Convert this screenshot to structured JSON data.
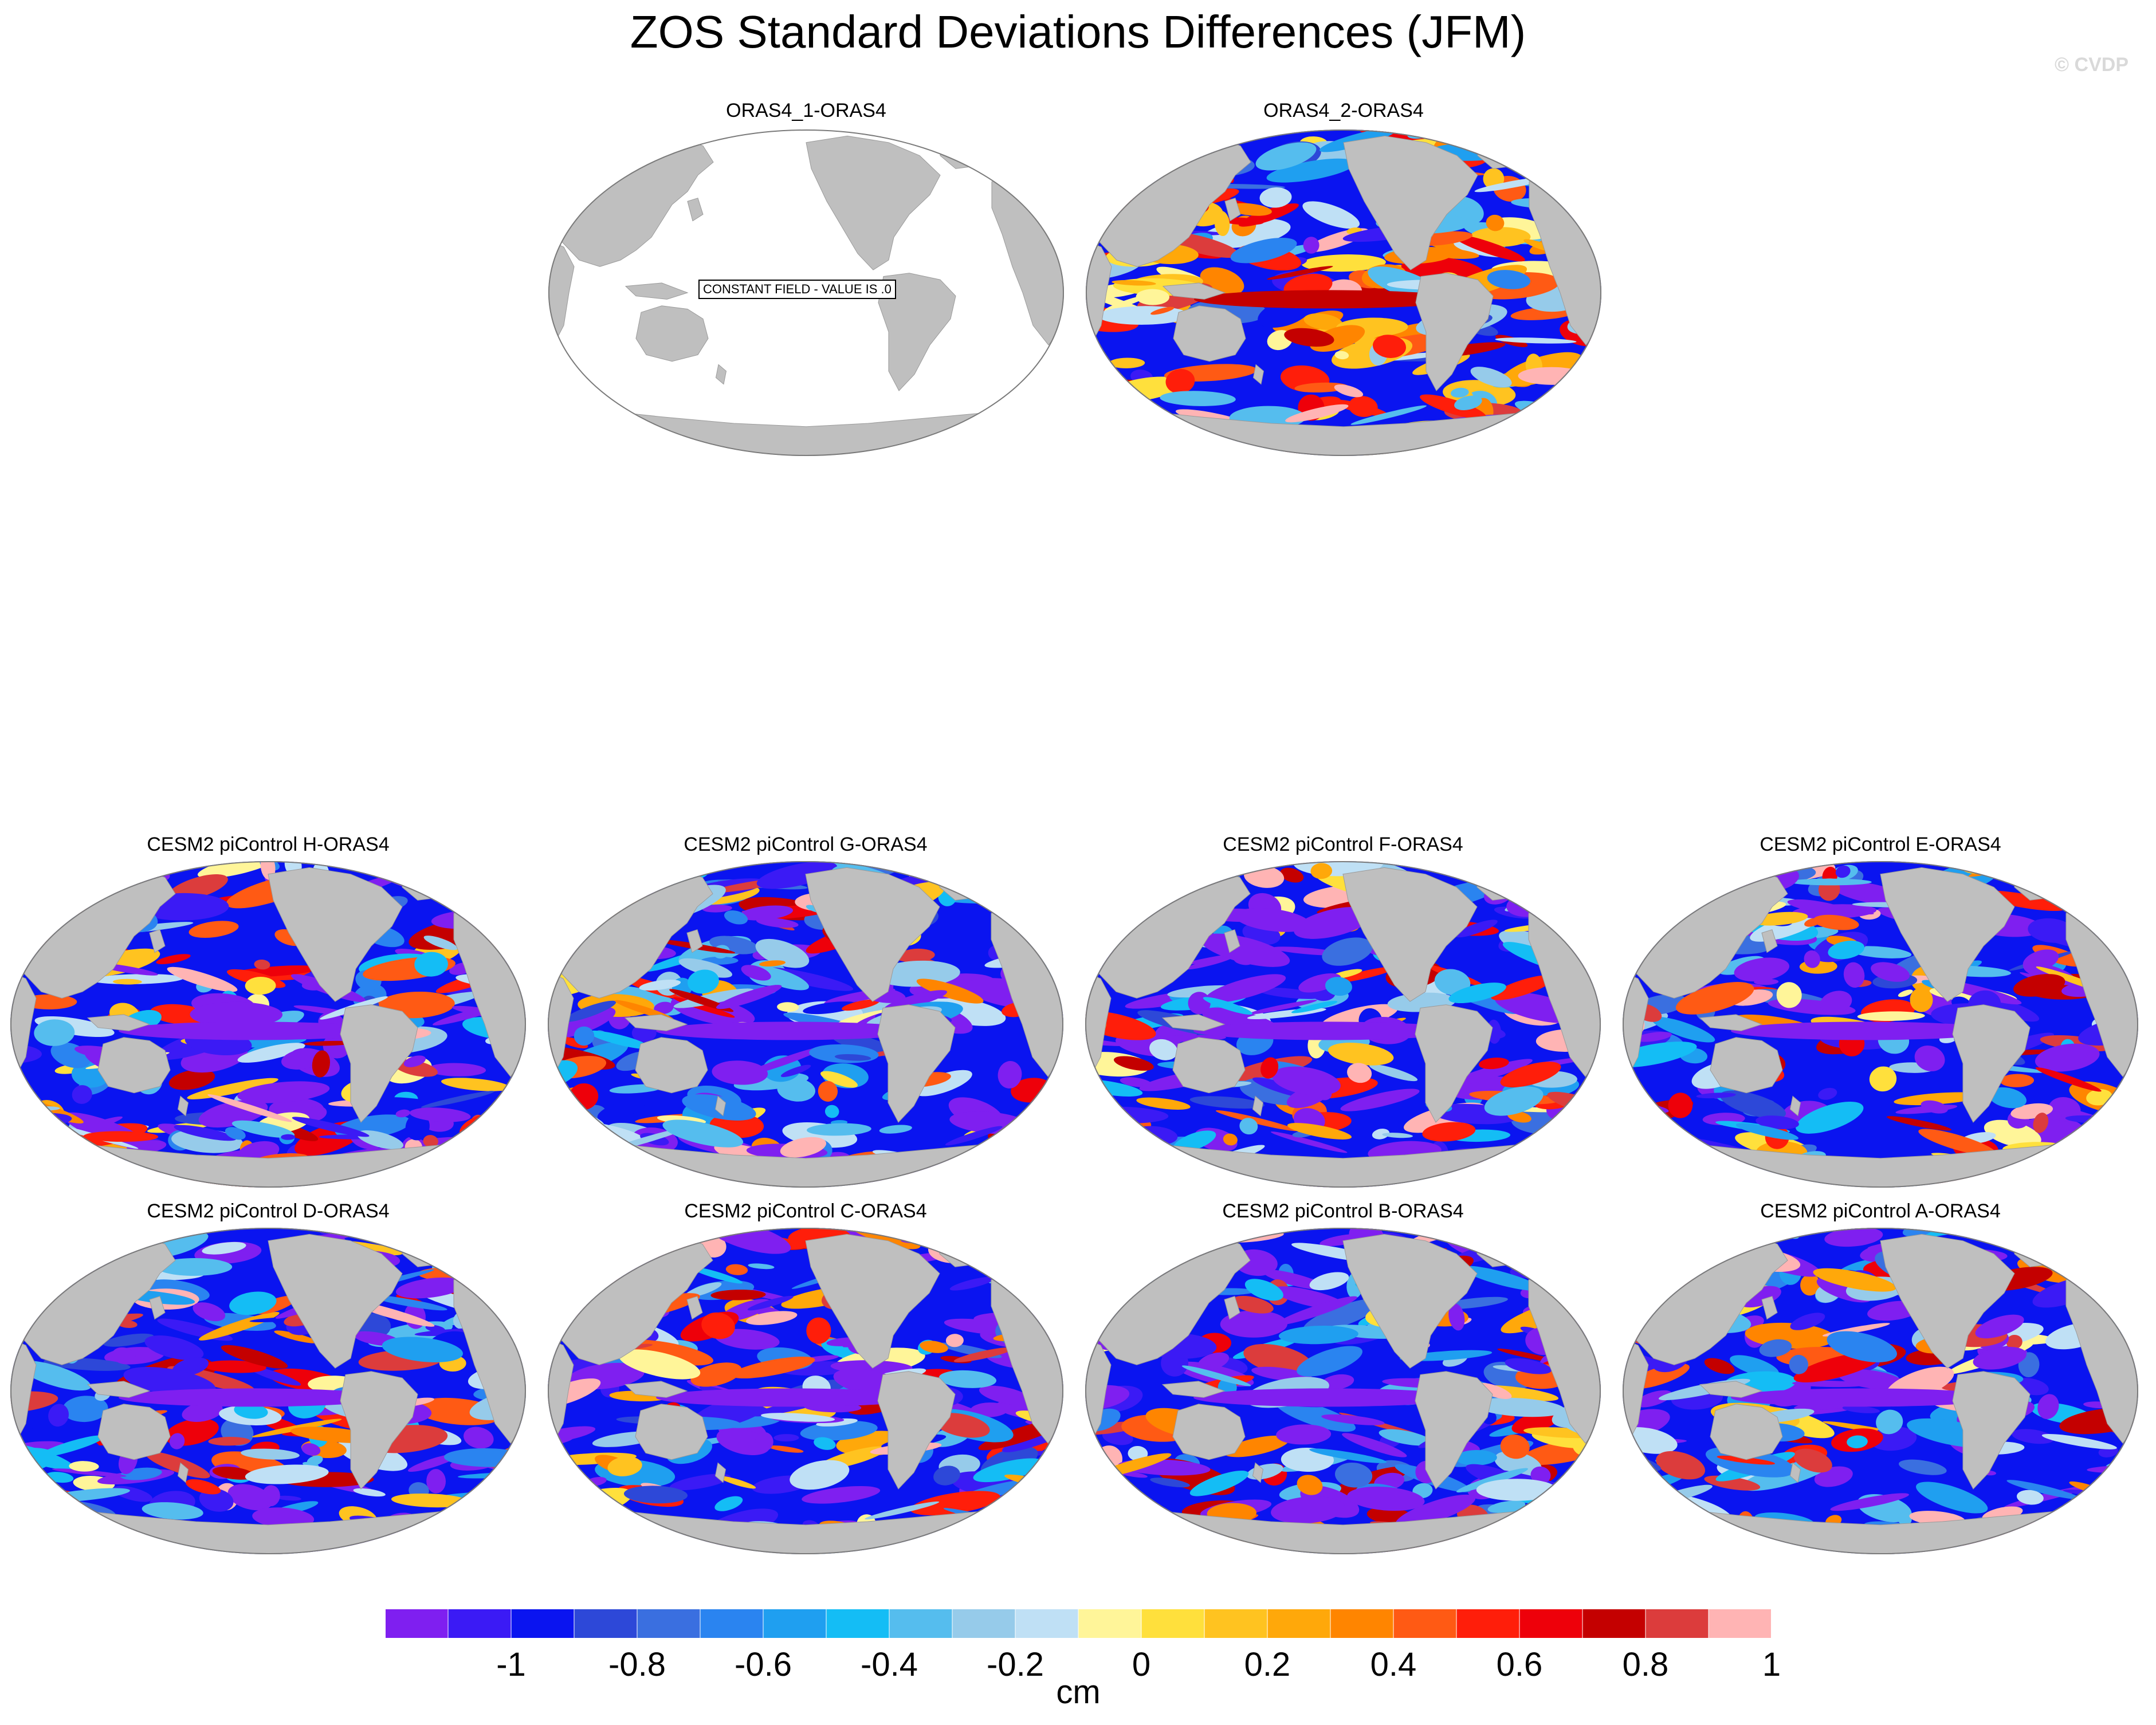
{
  "title": "ZOS Standard Deviations Differences (JFM)",
  "watermark": "© CVDP",
  "constant_field_label": "CONSTANT FIELD - VALUE IS .0",
  "colorbar": {
    "units": "cm",
    "ticks": [
      "-1",
      "-0.8",
      "-0.6",
      "-0.4",
      "-0.2",
      "0",
      "0.2",
      "0.4",
      "0.6",
      "0.8",
      "1"
    ],
    "colors": [
      "#7f1ff0",
      "#3b1af5",
      "#0a14f0",
      "#2d48d8",
      "#3a6fe0",
      "#2a84f0",
      "#1f9ff0",
      "#14bdf5",
      "#55bdee",
      "#96cbea",
      "#bfe0f5",
      "#fff599",
      "#ffe03c",
      "#ffc320",
      "#ffa80a",
      "#ff8500",
      "#ff5a14",
      "#ff1e0a",
      "#ee000a",
      "#c40000",
      "#dc3c3c",
      "#ffb4b4"
    ],
    "colors_note": ""
  },
  "colors": {
    "land": "#bfbfbf",
    "ocean_empty": "#ffffff",
    "outline": "#7a7a7a"
  },
  "panels": [
    {
      "id": "p0",
      "title": "ORAS4_1-ORAS4",
      "constant": true,
      "style": "none"
    },
    {
      "id": "p1",
      "title": "ORAS4_2-ORAS4",
      "constant": false,
      "style": "mixed"
    },
    {
      "id": "p2",
      "title": "CESM2 piControl H-ORAS4",
      "constant": false,
      "style": "model"
    },
    {
      "id": "p3",
      "title": "CESM2 piControl G-ORAS4",
      "constant": false,
      "style": "model"
    },
    {
      "id": "p4",
      "title": "CESM2 piControl F-ORAS4",
      "constant": false,
      "style": "model"
    },
    {
      "id": "p5",
      "title": "CESM2 piControl E-ORAS4",
      "constant": false,
      "style": "model"
    },
    {
      "id": "p6",
      "title": "CESM2 piControl D-ORAS4",
      "constant": false,
      "style": "model"
    },
    {
      "id": "p7",
      "title": "CESM2 piControl C-ORAS4",
      "constant": false,
      "style": "model"
    },
    {
      "id": "p8",
      "title": "CESM2 piControl B-ORAS4",
      "constant": false,
      "style": "model"
    },
    {
      "id": "p9",
      "title": "CESM2 piControl A-ORAS4",
      "constant": false,
      "style": "model"
    }
  ]
}
